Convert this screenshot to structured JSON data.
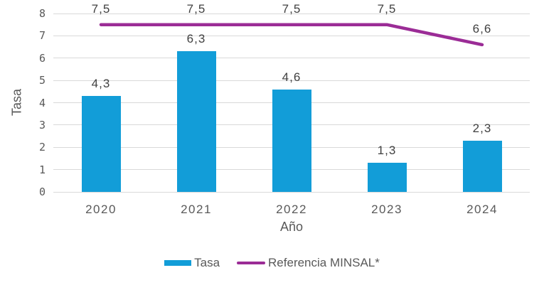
{
  "chart_data": {
    "type": "bar",
    "categories": [
      "2020",
      "2021",
      "2022",
      "2023",
      "2024"
    ],
    "series": [
      {
        "name": "Tasa",
        "type": "bar",
        "values": [
          4.3,
          6.3,
          4.6,
          1.3,
          2.3
        ],
        "labels": [
          "4,3",
          "6,3",
          "4,6",
          "1,3",
          "2,3"
        ],
        "color": "#129dd8"
      },
      {
        "name": "Referencia MINSAL*",
        "type": "line",
        "values": [
          7.5,
          7.5,
          7.5,
          7.5,
          6.6
        ],
        "labels": [
          "7,5",
          "7,5",
          "7,5",
          "7,5",
          "6,6"
        ],
        "color": "#9b2c96"
      }
    ],
    "title": "",
    "xlabel": "Año",
    "ylabel": "Tasa",
    "ylim": [
      0,
      8
    ],
    "ytick_step": 1,
    "yticks": [
      "0",
      "1",
      "2",
      "3",
      "4",
      "5",
      "6",
      "7",
      "8"
    ],
    "grid": true,
    "legend_position": "bottom",
    "colors": {
      "grid": "#d9d9d9",
      "tick_text": "#595959",
      "data_label_text": "#404040"
    }
  }
}
